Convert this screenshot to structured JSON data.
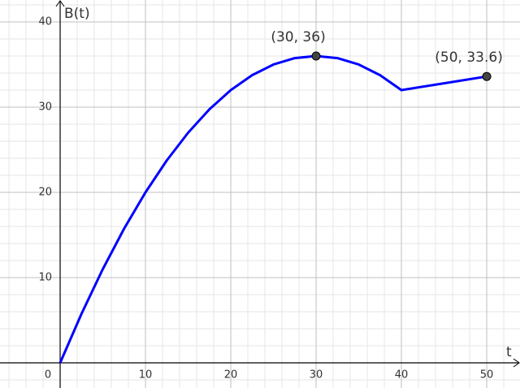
{
  "chart_data": {
    "type": "line",
    "x_label": "t",
    "y_label": "B(t)",
    "x": [
      0,
      2.5,
      5,
      7.5,
      10,
      12.5,
      15,
      17.5,
      20,
      22.5,
      25,
      27.5,
      30,
      32.5,
      35,
      37.5,
      40,
      45,
      50
    ],
    "series": [
      {
        "color": "#0000ff",
        "values": [
          0,
          5.75,
          11,
          15.75,
          20,
          23.75,
          27,
          29.75,
          32,
          33.75,
          35,
          35.75,
          36,
          35.75,
          35,
          33.75,
          32,
          32.8,
          33.6
        ]
      }
    ],
    "points": [
      {
        "x": 30,
        "y": 36,
        "label": "(30, 36)"
      },
      {
        "x": 50,
        "y": 33.6,
        "label": "(50, 33.6)"
      }
    ],
    "point_color": "#444444",
    "xlim": [
      -7.05,
      53.9
    ],
    "ylim": [
      -2.95,
      42.57
    ],
    "xticks": [
      0,
      10,
      20,
      30,
      40,
      50
    ],
    "yticks": [
      10,
      20,
      30,
      40
    ],
    "grid": true,
    "minor_grid_step": 2
  }
}
